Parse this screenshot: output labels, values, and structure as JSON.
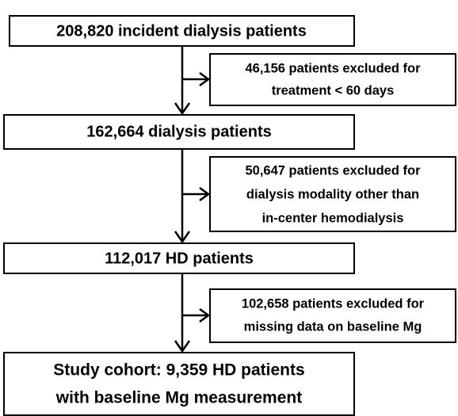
{
  "nodes": [
    {
      "lines": [
        "208,820 incident dialysis patients"
      ]
    },
    {
      "lines": [
        "46,156 patients excluded for",
        "treatment < 60 days"
      ]
    },
    {
      "lines": [
        "162,664 dialysis patients"
      ]
    },
    {
      "lines": [
        "50,647 patients excluded for",
        "dialysis modality other than",
        "in-center hemodialysis"
      ]
    },
    {
      "lines": [
        "112,017 HD patients"
      ]
    },
    {
      "lines": [
        "102,658 patients excluded for",
        "missing data on baseline Mg"
      ]
    },
    {
      "lines": [
        "Study cohort: 9,359 HD patients",
        "with baseline Mg measurement"
      ]
    }
  ]
}
